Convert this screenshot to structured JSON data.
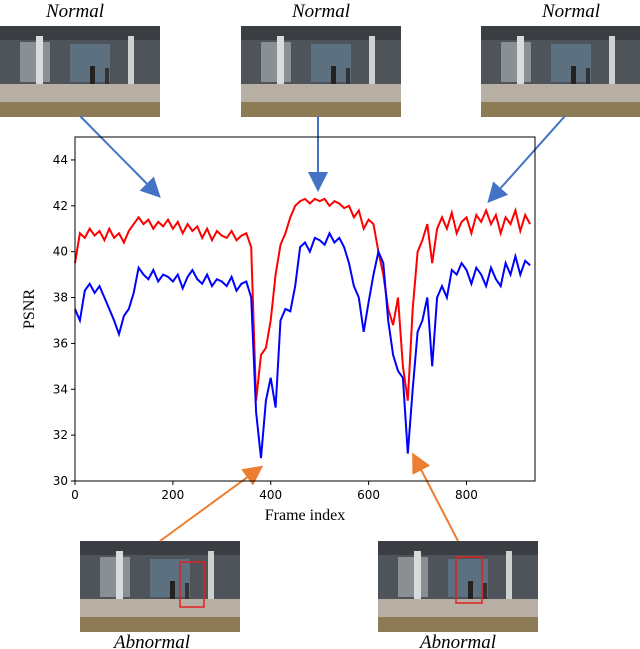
{
  "chart_data": {
    "type": "line",
    "xlabel": "Frame index",
    "ylabel": "PSNR",
    "annotations": [
      "Normal",
      "Normal",
      "Normal",
      "Abnormal",
      "Abnormal"
    ],
    "x": [
      0,
      10,
      20,
      30,
      40,
      50,
      60,
      70,
      80,
      90,
      100,
      110,
      120,
      130,
      140,
      150,
      160,
      170,
      180,
      190,
      200,
      210,
      220,
      230,
      240,
      250,
      260,
      270,
      280,
      290,
      300,
      310,
      320,
      330,
      340,
      350,
      360,
      370,
      380,
      390,
      400,
      410,
      420,
      430,
      440,
      450,
      460,
      470,
      480,
      490,
      500,
      510,
      520,
      530,
      540,
      550,
      560,
      570,
      580,
      590,
      600,
      610,
      620,
      630,
      640,
      650,
      660,
      670,
      680,
      690,
      700,
      710,
      720,
      730,
      740,
      750,
      760,
      770,
      780,
      790,
      800,
      810,
      820,
      830,
      840,
      850,
      860,
      870,
      880,
      890,
      900,
      910,
      920,
      930
    ],
    "series": [
      {
        "color": "#ff0000",
        "values": [
          39.5,
          40.8,
          40.6,
          41.0,
          40.7,
          40.9,
          40.5,
          41.0,
          40.6,
          40.8,
          40.4,
          40.9,
          41.2,
          41.5,
          41.2,
          41.4,
          41.0,
          41.3,
          41.1,
          41.4,
          41.0,
          41.3,
          40.8,
          41.2,
          40.9,
          41.1,
          40.6,
          41.0,
          40.5,
          40.9,
          40.7,
          40.6,
          40.9,
          40.5,
          40.7,
          40.8,
          40.2,
          33.5,
          35.5,
          35.8,
          37.0,
          39.0,
          40.3,
          40.8,
          41.5,
          42.0,
          42.2,
          42.3,
          42.1,
          42.3,
          42.2,
          42.3,
          42.0,
          42.2,
          42.1,
          41.9,
          42.0,
          41.5,
          41.8,
          41.0,
          41.4,
          41.2,
          40.0,
          39.0,
          37.5,
          36.8,
          38.0,
          35.0,
          33.5,
          37.5,
          40.0,
          40.5,
          41.2,
          39.5,
          41.0,
          41.5,
          41.0,
          41.7,
          40.8,
          41.3,
          41.5,
          40.8,
          41.6,
          41.3,
          41.8,
          41.2,
          41.6,
          40.8,
          41.5,
          41.2,
          41.8,
          40.9,
          41.6,
          41.2
        ]
      },
      {
        "color": "#0000ff",
        "values": [
          37.5,
          37.0,
          38.3,
          38.6,
          38.2,
          38.5,
          38.0,
          37.5,
          37.0,
          36.4,
          37.2,
          37.5,
          38.2,
          39.3,
          39.0,
          38.8,
          39.2,
          38.7,
          39.0,
          38.9,
          38.7,
          39.0,
          38.4,
          38.9,
          39.2,
          38.8,
          38.6,
          39.0,
          38.5,
          38.8,
          38.7,
          38.5,
          38.9,
          38.3,
          38.6,
          38.7,
          38.0,
          33.0,
          31.0,
          33.5,
          34.5,
          33.2,
          37.0,
          37.5,
          37.4,
          38.5,
          40.2,
          40.4,
          40.0,
          40.6,
          40.5,
          40.3,
          40.8,
          40.4,
          40.6,
          40.2,
          39.5,
          38.5,
          38.0,
          36.5,
          37.8,
          39.0,
          40.0,
          39.5,
          37.0,
          35.5,
          34.8,
          34.5,
          31.2,
          34.0,
          36.5,
          37.0,
          38.0,
          35.0,
          38.0,
          38.5,
          38.0,
          39.2,
          39.0,
          39.5,
          39.2,
          38.6,
          39.3,
          39.0,
          38.5,
          39.3,
          38.8,
          38.5,
          39.5,
          39.0,
          39.8,
          39.0,
          39.6,
          39.4
        ]
      }
    ],
    "xlim": [
      0,
      940
    ],
    "ylim": [
      30,
      45
    ],
    "xticks": [
      0,
      200,
      400,
      600,
      800
    ],
    "yticks": [
      30,
      32,
      34,
      36,
      38,
      40,
      42,
      44
    ]
  }
}
